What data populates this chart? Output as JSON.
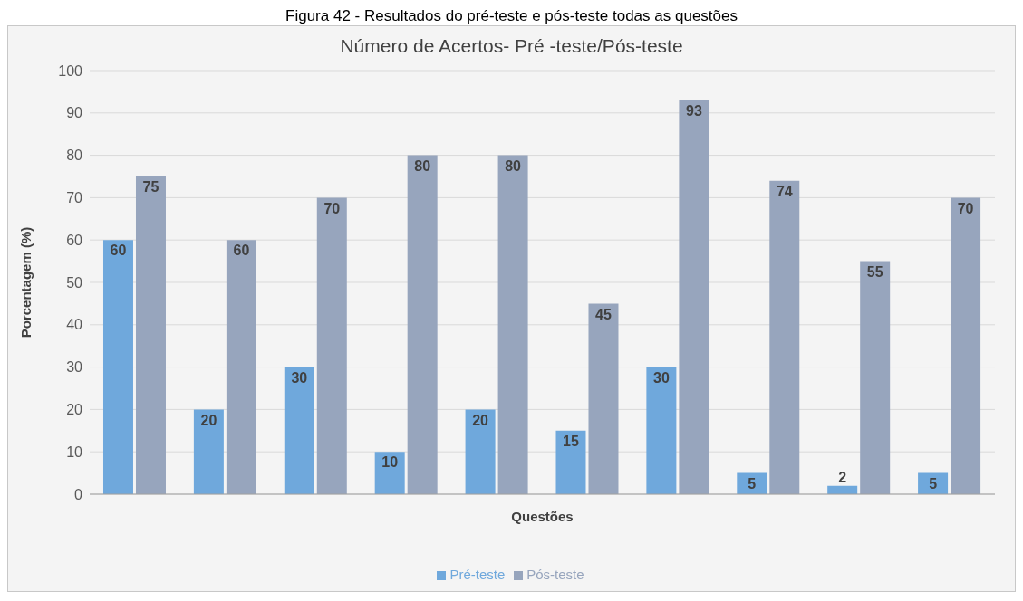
{
  "chart_data": {
    "type": "bar",
    "title": "Número de Acertos- Pré -teste/Pós-teste",
    "annotations": [
      "Figura 42 - Resultados do pré-teste e pós-teste todas as questões"
    ],
    "xlabel": "Questões",
    "ylabel": "Porcentagem (%)",
    "categories": [
      null,
      null,
      null,
      null,
      null,
      null,
      null,
      null,
      null,
      null
    ],
    "series": [
      {
        "name": "Pré-teste",
        "color": "#6fa8dc",
        "values": [
          60,
          20,
          30,
          10,
          20,
          15,
          30,
          5,
          2,
          5
        ]
      },
      {
        "name": "Pós-teste",
        "color": "#97a5bd",
        "values": [
          75,
          60,
          70,
          80,
          80,
          45,
          93,
          74,
          55,
          70
        ]
      }
    ],
    "ylim": [
      0,
      100
    ],
    "yticks": [
      0,
      10,
      20,
      30,
      40,
      50,
      60,
      70,
      80,
      90,
      100
    ],
    "grid": "y",
    "legend": "bottom",
    "data_labels": true
  }
}
